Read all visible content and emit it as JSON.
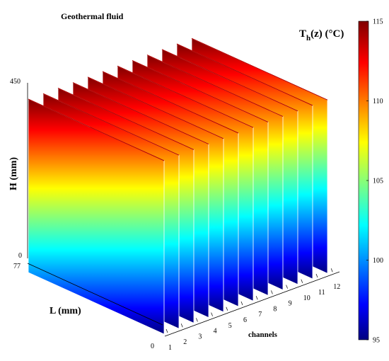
{
  "chart_data": {
    "type": "heatmap",
    "title": "Geothermal fluid",
    "z_axis": {
      "label": "H (mm)",
      "ticks": [
        "0",
        "450"
      ],
      "range": [
        0,
        450
      ]
    },
    "depth_axis": {
      "label": "L (mm)",
      "ticks": [
        "0",
        "77"
      ],
      "range": [
        0,
        77
      ]
    },
    "x_axis": {
      "label": "channels",
      "ticks": [
        "1",
        "2",
        "3",
        "4",
        "5",
        "6",
        "7",
        "8",
        "9",
        "10",
        "11",
        "12"
      ]
    },
    "series": [
      {
        "channel": 1,
        "T_bottom": 95,
        "T_top": 115
      },
      {
        "channel": 2,
        "T_bottom": 95,
        "T_top": 115
      },
      {
        "channel": 3,
        "T_bottom": 95,
        "T_top": 115
      },
      {
        "channel": 4,
        "T_bottom": 95,
        "T_top": 115
      },
      {
        "channel": 5,
        "T_bottom": 95,
        "T_top": 115
      },
      {
        "channel": 6,
        "T_bottom": 95,
        "T_top": 115
      },
      {
        "channel": 7,
        "T_bottom": 95,
        "T_top": 115
      },
      {
        "channel": 8,
        "T_bottom": 95,
        "T_top": 115
      },
      {
        "channel": 9,
        "T_bottom": 95,
        "T_top": 115
      },
      {
        "channel": 10,
        "T_bottom": 95,
        "T_top": 115
      },
      {
        "channel": 11,
        "T_bottom": 95,
        "T_top": 115
      },
      {
        "channel": 12,
        "T_bottom": 95,
        "T_top": 115
      }
    ],
    "colorbar": {
      "label_main": "T",
      "label_sub": "h",
      "label_rest": "(z) (°C)",
      "range": [
        95,
        115
      ],
      "ticks": [
        "95",
        "100",
        "105",
        "110",
        "115"
      ],
      "colormap": "jet"
    }
  }
}
